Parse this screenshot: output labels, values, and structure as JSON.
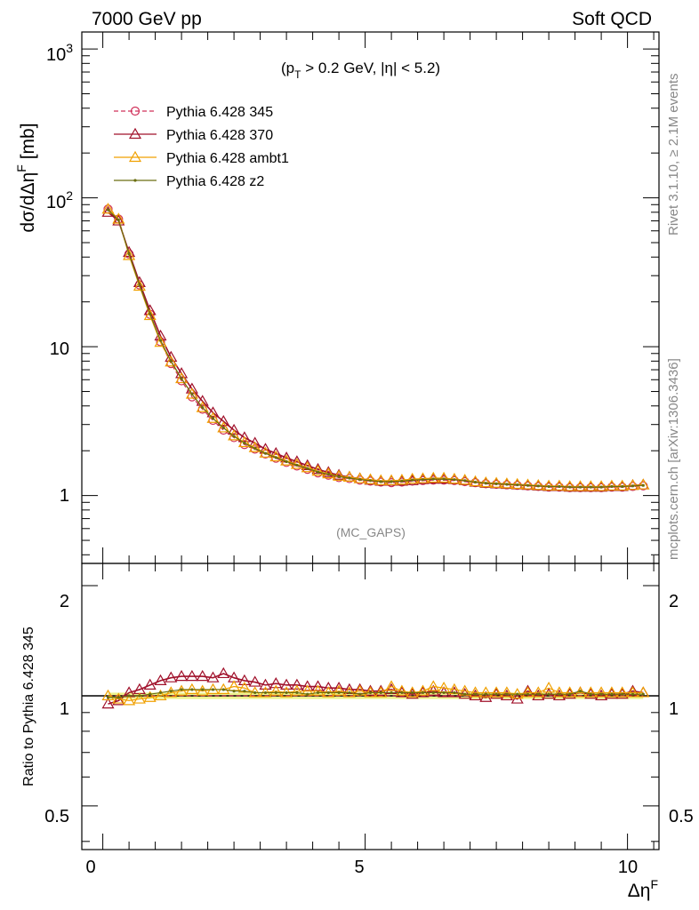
{
  "header": {
    "left_label": "7000 GeV pp",
    "right_label": "Soft QCD"
  },
  "side_text": {
    "rivet": "Rivet 3.1.10, ≥ 2.1M events",
    "mcplots": "mcplots.cern.ch [arXiv:1306.3436]"
  },
  "main_plot": {
    "cut_label": "(p",
    "cut_sub": "T",
    "cut_rest": " > 0.2 GeV, |η| < 5.2)",
    "analysis_label": "(MC_GAPS)",
    "ylabel": "dσ/dΔη",
    "ylabel_sup": "F",
    "ylabel_unit": " [mb]",
    "yticks": [
      "10",
      "10",
      "10",
      "1"
    ],
    "ytick_exps": [
      "3",
      "2",
      "",
      ""
    ]
  },
  "ratio_plot": {
    "ylabel": "Ratio to Pythia 6.428 345",
    "yticks": [
      "2",
      "1",
      "0.5"
    ],
    "ylim": [
      0.38,
      2.3
    ]
  },
  "xaxis": {
    "label": "Δη",
    "label_sup": "F",
    "ticks": [
      "0",
      "5",
      "10"
    ],
    "xlim": [
      -0.4,
      10.6
    ]
  },
  "legend": [
    {
      "name": "Pythia 6.428 345",
      "color": "#d0305a",
      "style": "dashed",
      "marker": "circle"
    },
    {
      "name": "Pythia 6.428 370",
      "color": "#a0102a",
      "style": "solid",
      "marker": "triangle"
    },
    {
      "name": "Pythia 6.428 ambt1",
      "color": "#f0a000",
      "style": "solid",
      "marker": "triangle"
    },
    {
      "name": "Pythia 6.428 z2",
      "color": "#6a6e10",
      "style": "solid",
      "marker": "dot"
    }
  ],
  "chart_data": [
    {
      "type": "line",
      "ylog": true,
      "ylim": [
        0.35,
        1300
      ],
      "xlim": [
        -0.4,
        10.6
      ],
      "x": [
        0.1,
        0.3,
        0.5,
        0.7,
        0.9,
        1.1,
        1.3,
        1.5,
        1.7,
        1.9,
        2.1,
        2.3,
        2.5,
        2.7,
        2.9,
        3.1,
        3.3,
        3.5,
        3.7,
        3.9,
        4.1,
        4.3,
        4.5,
        4.7,
        4.9,
        5.1,
        5.3,
        5.5,
        5.7,
        5.9,
        6.1,
        6.3,
        6.5,
        6.7,
        6.9,
        7.1,
        7.3,
        7.5,
        7.7,
        7.9,
        8.1,
        8.3,
        8.5,
        8.7,
        8.9,
        9.1,
        9.3,
        9.5,
        9.7,
        9.9,
        10.1,
        10.3
      ],
      "series": [
        {
          "name": "Pythia 6.428 345",
          "values": [
            84,
            72,
            42,
            26,
            16.5,
            10.8,
            7.7,
            5.9,
            4.6,
            3.8,
            3.2,
            2.75,
            2.45,
            2.2,
            2.05,
            1.9,
            1.78,
            1.67,
            1.58,
            1.5,
            1.42,
            1.37,
            1.32,
            1.3,
            1.27,
            1.25,
            1.23,
            1.22,
            1.23,
            1.25,
            1.26,
            1.27,
            1.27,
            1.26,
            1.24,
            1.22,
            1.2,
            1.19,
            1.18,
            1.17,
            1.16,
            1.15,
            1.14,
            1.14,
            1.13,
            1.13,
            1.13,
            1.13,
            1.14,
            1.14,
            1.15,
            1.16
          ]
        },
        {
          "name": "Pythia 6.428 370",
          "values": [
            80,
            70,
            43,
            27,
            17.5,
            11.8,
            8.5,
            6.6,
            5.2,
            4.3,
            3.6,
            3.15,
            2.75,
            2.45,
            2.25,
            2.05,
            1.92,
            1.79,
            1.69,
            1.59,
            1.5,
            1.43,
            1.37,
            1.33,
            1.3,
            1.27,
            1.25,
            1.25,
            1.25,
            1.26,
            1.28,
            1.29,
            1.29,
            1.28,
            1.26,
            1.23,
            1.21,
            1.2,
            1.19,
            1.18,
            1.17,
            1.16,
            1.15,
            1.15,
            1.14,
            1.14,
            1.14,
            1.14,
            1.15,
            1.15,
            1.17,
            1.18
          ]
        },
        {
          "name": "Pythia 6.428 ambt1",
          "values": [
            84,
            72,
            41,
            25.5,
            16.2,
            10.7,
            7.9,
            6.1,
            4.8,
            3.9,
            3.3,
            2.85,
            2.52,
            2.27,
            2.1,
            1.93,
            1.82,
            1.71,
            1.62,
            1.54,
            1.46,
            1.4,
            1.35,
            1.33,
            1.3,
            1.28,
            1.26,
            1.26,
            1.27,
            1.29,
            1.3,
            1.31,
            1.31,
            1.29,
            1.27,
            1.24,
            1.22,
            1.21,
            1.2,
            1.19,
            1.18,
            1.17,
            1.16,
            1.16,
            1.15,
            1.15,
            1.15,
            1.15,
            1.16,
            1.16,
            1.17,
            1.18
          ]
        },
        {
          "name": "Pythia 6.428 z2",
          "values": [
            83,
            71,
            42,
            26,
            16.6,
            11,
            8,
            6.1,
            4.8,
            3.9,
            3.3,
            2.85,
            2.5,
            2.25,
            2.07,
            1.92,
            1.8,
            1.69,
            1.6,
            1.52,
            1.44,
            1.39,
            1.34,
            1.31,
            1.28,
            1.26,
            1.24,
            1.24,
            1.25,
            1.27,
            1.28,
            1.29,
            1.29,
            1.28,
            1.26,
            1.23,
            1.21,
            1.2,
            1.19,
            1.18,
            1.17,
            1.16,
            1.15,
            1.15,
            1.14,
            1.14,
            1.14,
            1.14,
            1.15,
            1.15,
            1.16,
            1.17
          ]
        }
      ]
    },
    {
      "type": "line",
      "ylog": true,
      "ylim": [
        0.38,
        2.3
      ],
      "xlim": [
        -0.4,
        10.6
      ],
      "x": [
        0.1,
        0.3,
        0.5,
        0.7,
        0.9,
        1.1,
        1.3,
        1.5,
        1.7,
        1.9,
        2.1,
        2.3,
        2.5,
        2.7,
        2.9,
        3.1,
        3.3,
        3.5,
        3.7,
        3.9,
        4.1,
        4.3,
        4.5,
        4.7,
        4.9,
        5.1,
        5.3,
        5.5,
        5.7,
        5.9,
        6.1,
        6.3,
        6.5,
        6.7,
        6.9,
        7.1,
        7.3,
        7.5,
        7.7,
        7.9,
        8.1,
        8.3,
        8.5,
        8.7,
        8.9,
        9.1,
        9.3,
        9.5,
        9.7,
        9.9,
        10.1,
        10.3
      ],
      "band": {
        "lower": 0.98,
        "upper": 1.02,
        "color": "#e8f070"
      },
      "series": [
        {
          "name": "Pythia 6.428 345",
          "values": [
            1,
            1,
            1,
            1,
            1,
            1,
            1,
            1,
            1,
            1,
            1,
            1,
            1,
            1,
            1,
            1,
            1,
            1,
            1,
            1,
            1,
            1,
            1,
            1,
            1,
            1,
            1,
            1,
            1,
            1,
            1,
            1,
            1,
            1,
            1,
            1,
            1,
            1,
            1,
            1,
            1,
            1,
            1,
            1,
            1,
            1,
            1,
            1,
            1,
            1,
            1,
            1
          ]
        },
        {
          "name": "Pythia 6.428 370",
          "values": [
            0.95,
            0.97,
            1.02,
            1.04,
            1.07,
            1.1,
            1.12,
            1.13,
            1.13,
            1.13,
            1.12,
            1.15,
            1.12,
            1.1,
            1.09,
            1.07,
            1.08,
            1.07,
            1.07,
            1.06,
            1.06,
            1.05,
            1.05,
            1.04,
            1.04,
            1.03,
            1.03,
            1.04,
            1.02,
            1.01,
            1.02,
            1.03,
            1.02,
            1.02,
            1.01,
            1.0,
            0.99,
            1.01,
            1.0,
            0.98,
            1.03,
            1.0,
            1.01,
            1.0,
            1.01,
            1.02,
            1.01,
            1.0,
            1.01,
            1.01,
            1.03,
            1.02
          ]
        },
        {
          "name": "Pythia 6.428 ambt1",
          "values": [
            1.0,
            0.98,
            0.97,
            0.98,
            0.99,
            1.0,
            1.02,
            1.03,
            1.04,
            1.03,
            1.04,
            1.04,
            1.06,
            1.05,
            1.02,
            1.02,
            1.03,
            1.02,
            1.03,
            1.03,
            1.03,
            1.02,
            1.03,
            1.02,
            1.03,
            1.02,
            1.02,
            1.06,
            1.03,
            1.02,
            1.03,
            1.06,
            1.05,
            1.04,
            1.03,
            1.02,
            1.02,
            1.02,
            1.02,
            1.01,
            1.02,
            1.02,
            1.05,
            1.02,
            1.02,
            1.02,
            1.02,
            1.02,
            1.02,
            1.02,
            1.02,
            1.02
          ]
        },
        {
          "name": "Pythia 6.428 z2",
          "values": [
            0.99,
            0.99,
            1.0,
            1.0,
            1.01,
            1.02,
            1.03,
            1.04,
            1.04,
            1.04,
            1.04,
            1.04,
            1.03,
            1.03,
            1.02,
            1.02,
            1.02,
            1.02,
            1.02,
            1.01,
            1.02,
            1.02,
            1.02,
            1.02,
            1.01,
            1.02,
            1.02,
            1.02,
            1.02,
            1.02,
            1.02,
            1.02,
            1.02,
            1.02,
            1.01,
            1.01,
            1.01,
            1.01,
            1.01,
            1.01,
            1.01,
            1.01,
            1.01,
            1.01,
            1.01,
            1.03,
            1.01,
            1.01,
            1.01,
            1.01,
            1.01,
            1.01
          ]
        }
      ]
    }
  ]
}
